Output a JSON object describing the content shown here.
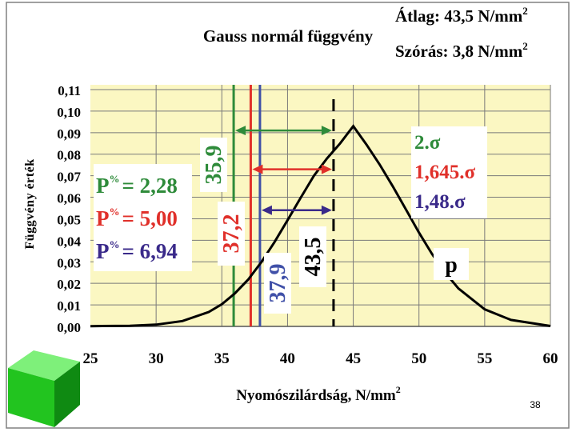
{
  "slide": {
    "page_number": "38",
    "colors": {
      "background": "#ffffff",
      "plot_bg": "#fbf7c2",
      "frame": "#808080"
    }
  },
  "chart_data": {
    "type": "line",
    "title": "Gauss normál függvény",
    "stats": {
      "mean_label": "Átlag: 43,5 N/mm",
      "mean_sup": "2",
      "sd_label": "Szórás: 3,8 N/mm",
      "sd_sup": "2"
    },
    "xlabel": "Nyomószilárdság, N/mm",
    "xlabel_sup": "2",
    "ylabel": "Függvény érték",
    "xlim": [
      25,
      60
    ],
    "ylim": [
      0,
      0.11
    ],
    "x_ticks": [
      25,
      30,
      35,
      40,
      45,
      50,
      55,
      60
    ],
    "x_tick_labels": [
      "25",
      "30",
      "35",
      "40",
      "45",
      "50",
      "55",
      "60"
    ],
    "y_ticks": [
      0,
      0.01,
      0.02,
      0.03,
      0.04,
      0.05,
      0.06,
      0.07,
      0.08,
      0.09,
      0.1,
      0.11
    ],
    "y_tick_labels": [
      "0,00",
      "0,01",
      "0,02",
      "0,03",
      "0,04",
      "0,05",
      "0,06",
      "0,07",
      "0,08",
      "0,09",
      "0,10",
      "0,11"
    ],
    "grid": true,
    "series": [
      {
        "color": "#000000",
        "x": [
          25,
          28,
          30,
          32,
          34,
          35,
          36,
          37,
          38,
          39,
          40,
          41,
          42,
          43,
          44,
          45,
          46,
          47,
          48,
          49,
          50,
          51,
          52,
          53,
          55,
          57,
          60
        ],
        "y": [
          0.0001,
          0.0003,
          0.0008,
          0.0025,
          0.0067,
          0.0103,
          0.0154,
          0.0217,
          0.0298,
          0.0391,
          0.0493,
          0.0598,
          0.0699,
          0.078,
          0.085,
          0.093,
          0.0845,
          0.0753,
          0.0651,
          0.0544,
          0.0436,
          0.0336,
          0.0249,
          0.0176,
          0.0079,
          0.003,
          0.0002
        ]
      }
    ],
    "vertical_lines": [
      {
        "x": 35.9,
        "color": "#2e8b3a",
        "style": "solid",
        "label": "35,9"
      },
      {
        "x": 37.2,
        "color": "#e0302a",
        "style": "solid",
        "label": "37,2"
      },
      {
        "x": 37.9,
        "color": "#4050a8",
        "style": "solid",
        "label": "37,9"
      },
      {
        "x": 43.5,
        "color": "#000000",
        "style": "dashed",
        "label": "43,5"
      }
    ],
    "arrows": [
      {
        "from": 35.9,
        "to": 43.5,
        "y": 0.091,
        "color": "#2e8b3a"
      },
      {
        "from": 37.2,
        "to": 43.5,
        "y": 0.073,
        "color": "#e0302a"
      },
      {
        "from": 37.9,
        "to": 43.5,
        "y": 0.054,
        "color": "#3a2a8a"
      }
    ],
    "left_legend": [
      {
        "p": "P",
        "sup": "%",
        "value": "= 2,28",
        "color": "#2e8b3a"
      },
      {
        "p": "P",
        "sup": "%",
        "value": "= 5,00",
        "color": "#e0302a"
      },
      {
        "p": "P",
        "sup": "%",
        "value": "= 6,94",
        "color": "#3a2a8a"
      }
    ],
    "right_legend": [
      {
        "text": "2.σ",
        "color": "#2e8b3a"
      },
      {
        "text": "1,645.σ",
        "color": "#e0302a"
      },
      {
        "text": "1,48.σ",
        "color": "#3a2a8a"
      }
    ],
    "p_label": "p"
  }
}
